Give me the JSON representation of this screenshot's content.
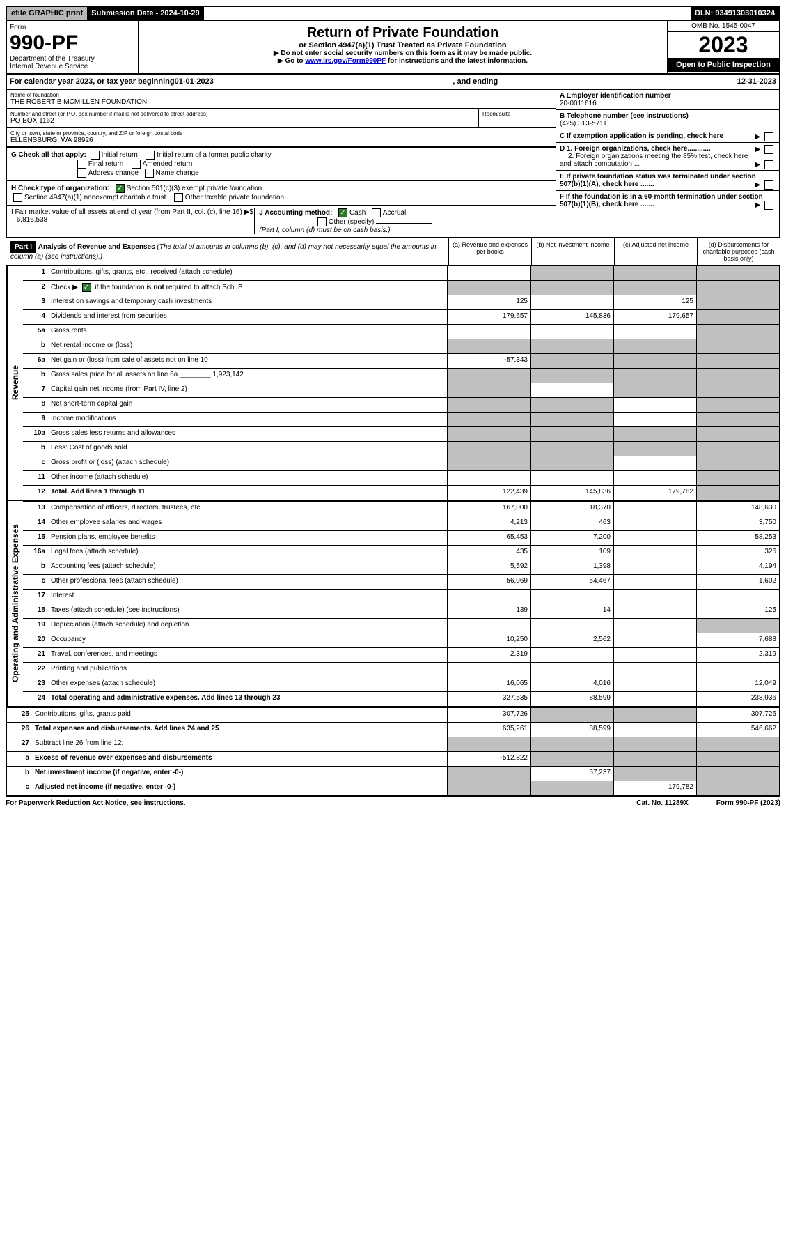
{
  "topbar": {
    "efile": "efile GRAPHIC print",
    "submission": "Submission Date - 2024-10-29",
    "dln": "DLN: 93491303010324"
  },
  "header": {
    "form_label": "Form",
    "form_no": "990-PF",
    "dept": "Department of the Treasury",
    "irs": "Internal Revenue Service",
    "title": "Return of Private Foundation",
    "subtitle": "or Section 4947(a)(1) Trust Treated as Private Foundation",
    "note1": "▶ Do not enter social security numbers on this form as it may be made public.",
    "note2_prefix": "▶ Go to ",
    "note2_link": "www.irs.gov/Form990PF",
    "note2_suffix": " for instructions and the latest information.",
    "omb": "OMB No. 1545-0047",
    "year": "2023",
    "open": "Open to Public Inspection"
  },
  "calendar": {
    "prefix": "For calendar year 2023, or tax year beginning ",
    "begin": "01-01-2023",
    "mid": ", and ending ",
    "end": "12-31-2023"
  },
  "identity": {
    "name_lbl": "Name of foundation",
    "name": "THE ROBERT B MCMILLEN FOUNDATION",
    "addr_lbl": "Number and street (or P.O. box number if mail is not delivered to street address)",
    "room_lbl": "Room/suite",
    "addr": "PO BOX 1162",
    "city_lbl": "City or town, state or province, country, and ZIP or foreign postal code",
    "city": "ELLENSBURG, WA  98926",
    "a_lbl": "A Employer identification number",
    "ein": "20-0011616",
    "b_lbl": "B Telephone number (see instructions)",
    "phone": "(425) 313-5711",
    "c_lbl": "C If exemption application is pending, check here",
    "d1_lbl": "D 1. Foreign organizations, check here............",
    "d2_lbl": "2. Foreign organizations meeting the 85% test, check here and attach computation ...",
    "e_lbl": "E  If private foundation status was terminated under section 507(b)(1)(A), check here .......",
    "f_lbl": "F  If the foundation is in a 60-month termination under section 507(b)(1)(B), check here .......",
    "g_lbl": "G Check all that apply:",
    "g_opts": [
      "Initial return",
      "Initial return of a former public charity",
      "Final return",
      "Amended return",
      "Address change",
      "Name change"
    ],
    "h_lbl": "H Check type of organization:",
    "h_opt1": "Section 501(c)(3) exempt private foundation",
    "h_opt2": "Section 4947(a)(1) nonexempt charitable trust",
    "h_opt3": "Other taxable private foundation",
    "i_lbl": "I Fair market value of all assets at end of year (from Part II, col. (c), line 16) ▶$",
    "i_val": "6,816,538",
    "j_lbl": "J Accounting method:",
    "j_cash": "Cash",
    "j_accrual": "Accrual",
    "j_other": "Other (specify)",
    "j_note": "(Part I, column (d) must be on cash basis.)"
  },
  "part1": {
    "tag": "Part I",
    "title": "Analysis of Revenue and Expenses",
    "title_note": " (The total of amounts in columns (b), (c), and (d) may not necessarily equal the amounts in column (a) (see instructions).)",
    "col_a": "(a)  Revenue and expenses per books",
    "col_b": "(b)  Net investment income",
    "col_c": "(c)  Adjusted net income",
    "col_d": "(d)  Disbursements for charitable purposes (cash basis only)",
    "side_rev": "Revenue",
    "side_exp": "Operating and Administrative Expenses"
  },
  "rows": [
    {
      "n": "1",
      "d": "Contributions, gifts, grants, etc., received (attach schedule)",
      "a": "",
      "b": "shade",
      "c": "shade",
      "dd": "shade"
    },
    {
      "n": "2",
      "d": "Check ▶ ☑ if the foundation is not required to attach Sch. B",
      "dots": true,
      "a": "shade",
      "b": "shade",
      "c": "shade",
      "dd": "shade"
    },
    {
      "n": "3",
      "d": "Interest on savings and temporary cash investments",
      "a": "125",
      "b": "",
      "c": "125",
      "dd": "shade"
    },
    {
      "n": "4",
      "d": "Dividends and interest from securities",
      "dots": true,
      "a": "179,657",
      "b": "145,836",
      "c": "179,657",
      "dd": "shade"
    },
    {
      "n": "5a",
      "d": "Gross rents",
      "dots": true,
      "a": "",
      "b": "",
      "c": "",
      "dd": "shade"
    },
    {
      "n": "b",
      "d": "Net rental income or (loss)",
      "a": "shade",
      "b": "shade",
      "c": "shade",
      "dd": "shade"
    },
    {
      "n": "6a",
      "d": "Net gain or (loss) from sale of assets not on line 10",
      "a": "-57,343",
      "b": "shade",
      "c": "shade",
      "dd": "shade"
    },
    {
      "n": "b",
      "d": "Gross sales price for all assets on line 6a ________ 1,923,142",
      "a": "shade",
      "b": "shade",
      "c": "shade",
      "dd": "shade"
    },
    {
      "n": "7",
      "d": "Capital gain net income (from Part IV, line 2)",
      "dots": true,
      "a": "shade",
      "b": "",
      "c": "shade",
      "dd": "shade"
    },
    {
      "n": "8",
      "d": "Net short-term capital gain",
      "dots": true,
      "a": "shade",
      "b": "shade",
      "c": "",
      "dd": "shade"
    },
    {
      "n": "9",
      "d": "Income modifications",
      "dots": true,
      "a": "shade",
      "b": "shade",
      "c": "",
      "dd": "shade"
    },
    {
      "n": "10a",
      "d": "Gross sales less returns and allowances",
      "a": "shade",
      "b": "shade",
      "c": "shade",
      "dd": "shade"
    },
    {
      "n": "b",
      "d": "Less: Cost of goods sold",
      "dots": true,
      "a": "shade",
      "b": "shade",
      "c": "shade",
      "dd": "shade"
    },
    {
      "n": "c",
      "d": "Gross profit or (loss) (attach schedule)",
      "dots": true,
      "a": "shade",
      "b": "shade",
      "c": "",
      "dd": "shade"
    },
    {
      "n": "11",
      "d": "Other income (attach schedule)",
      "dots": true,
      "a": "",
      "b": "",
      "c": "",
      "dd": "shade"
    },
    {
      "n": "12",
      "d": "Total. Add lines 1 through 11",
      "dots": true,
      "bold": true,
      "a": "122,439",
      "b": "145,836",
      "c": "179,782",
      "dd": "shade"
    },
    {
      "n": "13",
      "d": "Compensation of officers, directors, trustees, etc.",
      "a": "167,000",
      "b": "18,370",
      "c": "",
      "dd": "148,630"
    },
    {
      "n": "14",
      "d": "Other employee salaries and wages",
      "dots": true,
      "a": "4,213",
      "b": "463",
      "c": "",
      "dd": "3,750"
    },
    {
      "n": "15",
      "d": "Pension plans, employee benefits",
      "dots": true,
      "a": "65,453",
      "b": "7,200",
      "c": "",
      "dd": "58,253"
    },
    {
      "n": "16a",
      "d": "Legal fees (attach schedule)",
      "dots": true,
      "a": "435",
      "b": "109",
      "c": "",
      "dd": "326"
    },
    {
      "n": "b",
      "d": "Accounting fees (attach schedule)",
      "dots": true,
      "a": "5,592",
      "b": "1,398",
      "c": "",
      "dd": "4,194"
    },
    {
      "n": "c",
      "d": "Other professional fees (attach schedule)",
      "dots": true,
      "a": "56,069",
      "b": "54,467",
      "c": "",
      "dd": "1,602"
    },
    {
      "n": "17",
      "d": "Interest",
      "dots": true,
      "a": "",
      "b": "",
      "c": "",
      "dd": ""
    },
    {
      "n": "18",
      "d": "Taxes (attach schedule) (see instructions)",
      "dots": true,
      "a": "139",
      "b": "14",
      "c": "",
      "dd": "125"
    },
    {
      "n": "19",
      "d": "Depreciation (attach schedule) and depletion",
      "dots": true,
      "a": "",
      "b": "",
      "c": "",
      "dd": "shade"
    },
    {
      "n": "20",
      "d": "Occupancy",
      "dots": true,
      "a": "10,250",
      "b": "2,562",
      "c": "",
      "dd": "7,688"
    },
    {
      "n": "21",
      "d": "Travel, conferences, and meetings",
      "dots": true,
      "a": "2,319",
      "b": "",
      "c": "",
      "dd": "2,319"
    },
    {
      "n": "22",
      "d": "Printing and publications",
      "dots": true,
      "a": "",
      "b": "",
      "c": "",
      "dd": ""
    },
    {
      "n": "23",
      "d": "Other expenses (attach schedule)",
      "dots": true,
      "a": "16,065",
      "b": "4,016",
      "c": "",
      "dd": "12,049"
    },
    {
      "n": "24",
      "d": "Total operating and administrative expenses. Add lines 13 through 23",
      "dots": true,
      "bold": true,
      "a": "327,535",
      "b": "88,599",
      "c": "",
      "dd": "238,936"
    },
    {
      "n": "25",
      "d": "Contributions, gifts, grants paid",
      "dots": true,
      "a": "307,726",
      "b": "shade",
      "c": "shade",
      "dd": "307,726"
    },
    {
      "n": "26",
      "d": "Total expenses and disbursements. Add lines 24 and 25",
      "bold": true,
      "a": "635,261",
      "b": "88,599",
      "c": "",
      "dd": "546,662"
    },
    {
      "n": "27",
      "d": "Subtract line 26 from line 12:",
      "a": "shade",
      "b": "shade",
      "c": "shade",
      "dd": "shade"
    },
    {
      "n": "a",
      "d": "Excess of revenue over expenses and disbursements",
      "bold": true,
      "a": "-512,822",
      "b": "shade",
      "c": "shade",
      "dd": "shade"
    },
    {
      "n": "b",
      "d": "Net investment income (if negative, enter -0-)",
      "bold": true,
      "a": "shade",
      "b": "57,237",
      "c": "shade",
      "dd": "shade"
    },
    {
      "n": "c",
      "d": "Adjusted net income (if negative, enter -0-)",
      "dots": true,
      "bold": true,
      "a": "shade",
      "b": "shade",
      "c": "179,782",
      "dd": "shade"
    }
  ],
  "footer": {
    "left": "For Paperwork Reduction Act Notice, see instructions.",
    "mid": "Cat. No. 11289X",
    "right": "Form 990-PF (2023)"
  }
}
